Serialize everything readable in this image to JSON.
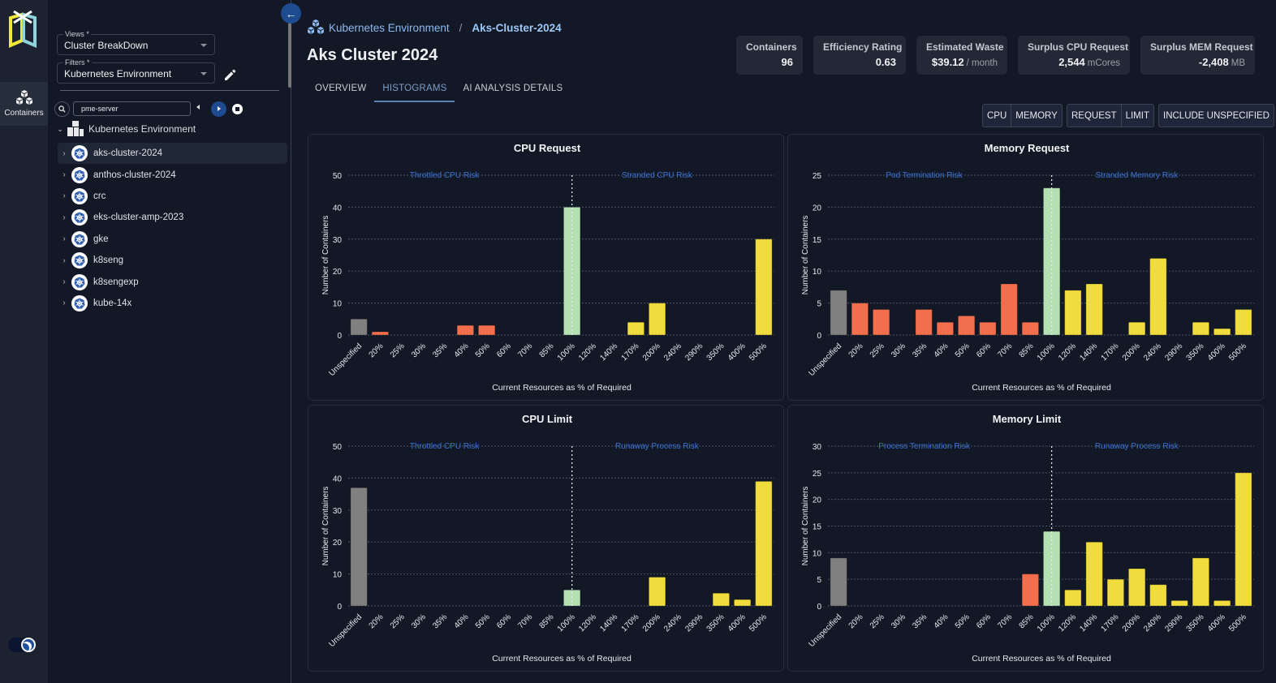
{
  "rail": {
    "items": [
      {
        "label": "Containers",
        "icon": "cubes-icon"
      }
    ]
  },
  "panel": {
    "views": {
      "label": "Views *",
      "value": "Cluster BreakDown"
    },
    "filters": {
      "label": "Filters *",
      "value": "Kubernetes Environment"
    },
    "search": {
      "value": "pme-server",
      "placeholder": ""
    },
    "tree": {
      "root": "Kubernetes Environment",
      "items": [
        {
          "label": "aks-cluster-2024",
          "selected": true
        },
        {
          "label": "anthos-cluster-2024",
          "selected": false
        },
        {
          "label": "crc",
          "selected": false
        },
        {
          "label": "eks-cluster-amp-2023",
          "selected": false
        },
        {
          "label": "gke",
          "selected": false
        },
        {
          "label": "k8seng",
          "selected": false
        },
        {
          "label": "k8sengexp",
          "selected": false
        },
        {
          "label": "kube-14x",
          "selected": false
        }
      ]
    }
  },
  "header": {
    "breadcrumb": [
      "Kubernetes Environment",
      "Aks-Cluster-2024"
    ],
    "breadcrumb_sep": "/",
    "title": "Aks Cluster 2024",
    "tabs": [
      {
        "label": "OVERVIEW",
        "active": false
      },
      {
        "label": "HISTOGRAMS",
        "active": true
      },
      {
        "label": "AI ANALYSIS DETAILS",
        "active": false
      }
    ]
  },
  "stats": [
    {
      "title": "Containers",
      "value": "96",
      "unit": ""
    },
    {
      "title": "Efficiency Rating",
      "value": "0.63",
      "unit": ""
    },
    {
      "title": "Estimated Waste",
      "value": "$39.12",
      "unit": "/ month"
    },
    {
      "title": "Surplus CPU Request",
      "value": "2,544",
      "unit": "mCores"
    },
    {
      "title": "Surplus MEM Request",
      "value": "-2,408",
      "unit": "MB"
    }
  ],
  "toggles": {
    "resource": [
      "CPU",
      "MEMORY"
    ],
    "kind": [
      "REQUEST",
      "LIMIT"
    ],
    "unspecified": "INCLUDE UNSPECIFIED"
  },
  "colors": {
    "unspecified": "#808080",
    "under": "#f26e4c",
    "optimal": "#b5e0b3",
    "over": "#f0dc3c",
    "risk_label": "#3d74d6"
  },
  "chart_data": [
    {
      "type": "bar",
      "title": "CPU Request",
      "xlabel": "Current Resources as % of Required",
      "ylabel": "Number of Containers",
      "ylim": [
        0,
        50
      ],
      "yticks": [
        0,
        10,
        20,
        30,
        40,
        50
      ],
      "grid": true,
      "annotations": {
        "left": "Throttled CPU Risk",
        "right": "Stranded CPU Risk"
      },
      "categories": [
        "Unspecified",
        "20%",
        "25%",
        "30%",
        "35%",
        "40%",
        "50%",
        "60%",
        "70%",
        "85%",
        "100%",
        "120%",
        "140%",
        "170%",
        "200%",
        "240%",
        "290%",
        "350%",
        "400%",
        "500%"
      ],
      "values": [
        5,
        1,
        0,
        0,
        0,
        3,
        3,
        0,
        0,
        0,
        40,
        0,
        0,
        4,
        10,
        0,
        0,
        0,
        0,
        30
      ]
    },
    {
      "type": "bar",
      "title": "Memory Request",
      "xlabel": "Current Resources as % of Required",
      "ylabel": "Number of Containers",
      "ylim": [
        0,
        25
      ],
      "yticks": [
        0,
        5,
        10,
        15,
        20,
        25
      ],
      "grid": true,
      "annotations": {
        "left": "Pod Termination Risk",
        "right": "Stranded Memory Risk"
      },
      "categories": [
        "Unspecified",
        "20%",
        "25%",
        "30%",
        "35%",
        "40%",
        "50%",
        "60%",
        "70%",
        "85%",
        "100%",
        "120%",
        "140%",
        "170%",
        "200%",
        "240%",
        "290%",
        "350%",
        "400%",
        "500%"
      ],
      "values": [
        7,
        5,
        4,
        0,
        4,
        2,
        3,
        2,
        8,
        2,
        23,
        7,
        8,
        0,
        2,
        12,
        0,
        2,
        1,
        4
      ]
    },
    {
      "type": "bar",
      "title": "CPU Limit",
      "xlabel": "Current Resources as % of Required",
      "ylabel": "Number of Containers",
      "ylim": [
        0,
        50
      ],
      "yticks": [
        0,
        10,
        20,
        30,
        40,
        50
      ],
      "grid": true,
      "annotations": {
        "left": "Throttled CPU Risk",
        "right": "Runaway Process Risk"
      },
      "categories": [
        "Unspecified",
        "20%",
        "25%",
        "30%",
        "35%",
        "40%",
        "50%",
        "60%",
        "70%",
        "85%",
        "100%",
        "120%",
        "140%",
        "170%",
        "200%",
        "240%",
        "290%",
        "350%",
        "400%",
        "500%"
      ],
      "values": [
        37,
        0,
        0,
        0,
        0,
        0,
        0,
        0,
        0,
        0,
        5,
        0,
        0,
        0,
        9,
        0,
        0,
        4,
        2,
        39
      ]
    },
    {
      "type": "bar",
      "title": "Memory Limit",
      "xlabel": "Current Resources as % of Required",
      "ylabel": "Number of Containers",
      "ylim": [
        0,
        30
      ],
      "yticks": [
        0,
        5,
        10,
        15,
        20,
        25,
        30
      ],
      "grid": true,
      "annotations": {
        "left": "Process Termination Risk",
        "right": "Runaway Process Risk"
      },
      "categories": [
        "Unspecified",
        "20%",
        "25%",
        "30%",
        "35%",
        "40%",
        "50%",
        "60%",
        "70%",
        "85%",
        "100%",
        "120%",
        "140%",
        "170%",
        "200%",
        "240%",
        "290%",
        "350%",
        "400%",
        "500%"
      ],
      "values": [
        9,
        0,
        0,
        0,
        0,
        0,
        0,
        0,
        0,
        6,
        14,
        3,
        12,
        5,
        7,
        4,
        1,
        9,
        1,
        25
      ]
    }
  ]
}
